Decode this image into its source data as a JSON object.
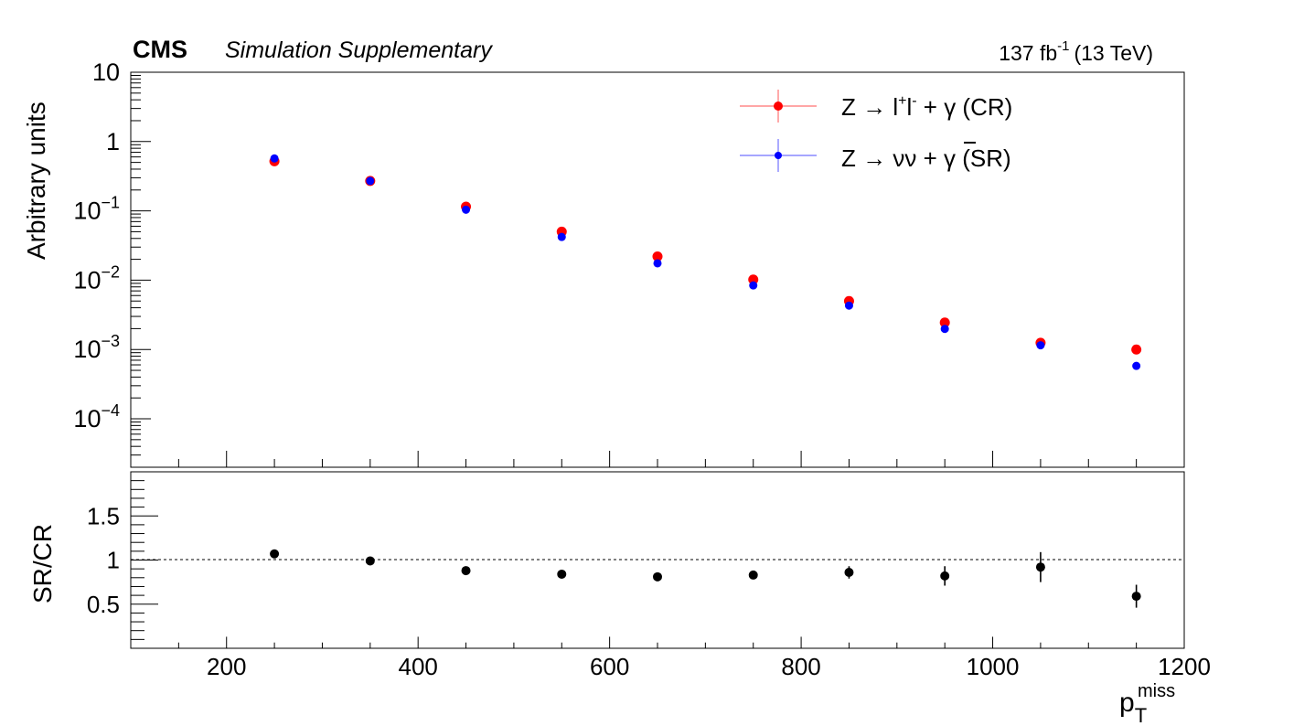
{
  "header": {
    "experiment": "CMS",
    "subtitle": "Simulation Supplementary",
    "lumi_value": "137 fb",
    "lumi_exp": "-1",
    "lumi_energy": "(13 TeV)"
  },
  "chart_data": [
    {
      "type": "scatter",
      "panel": "main",
      "ylabel": "Arbitrary units",
      "yscale": "log",
      "ylim": [
        2e-05,
        10
      ],
      "xlim": [
        100,
        1200
      ],
      "y_ticks": [
        {
          "value": 10,
          "base": "10",
          "exp": ""
        },
        {
          "value": 1,
          "base": "1",
          "exp": ""
        },
        {
          "value": 0.1,
          "base": "10",
          "exp": "−1"
        },
        {
          "value": 0.01,
          "base": "10",
          "exp": "−2"
        },
        {
          "value": 0.001,
          "base": "10",
          "exp": "−3"
        },
        {
          "value": 0.0001,
          "base": "10",
          "exp": "−4"
        }
      ],
      "legend": {
        "position": "top-right",
        "entries": [
          {
            "prefix": "Z → l",
            "sup1": "+",
            "mid": "l",
            "sup2": "-",
            "suffix": " + γ (CR)"
          },
          {
            "prefix": "Z → νν",
            "sup1": "",
            "mid": "",
            "sup2": "",
            "suffix": " + γ (SR)"
          }
        ]
      },
      "x": [
        250,
        350,
        450,
        550,
        650,
        750,
        850,
        950,
        1050,
        1150
      ],
      "series": [
        {
          "name": "Z → l+l- + γ (CR)",
          "color": "#ff0000",
          "values": [
            0.52,
            0.27,
            0.115,
            0.05,
            0.022,
            0.0102,
            0.005,
            0.00245,
            0.00125,
            0.001
          ]
        },
        {
          "name": "Z → νν + γ (SR)",
          "color": "#0000ff",
          "values": [
            0.57,
            0.27,
            0.104,
            0.042,
            0.0175,
            0.0084,
            0.0043,
            0.00198,
            0.00115,
            0.00058
          ]
        }
      ]
    },
    {
      "type": "scatter",
      "panel": "ratio",
      "ylabel": "SR/CR",
      "ylim": [
        0,
        2
      ],
      "xlim": [
        100,
        1200
      ],
      "y_tick_labels": [
        {
          "value": 1.5,
          "label": "1.5"
        },
        {
          "value": 1,
          "label": "1"
        },
        {
          "value": 0.5,
          "label": "0.5"
        }
      ],
      "x_tick_labels": [
        {
          "value": 200,
          "label": "200"
        },
        {
          "value": 400,
          "label": "400"
        },
        {
          "value": 600,
          "label": "600"
        },
        {
          "value": 800,
          "label": "800"
        },
        {
          "value": 1000,
          "label": "1000"
        },
        {
          "value": 1200,
          "label": "1200"
        }
      ],
      "xlabel": {
        "base": "p",
        "sub": "T",
        "sup": "miss"
      },
      "reference_line": 1,
      "x": [
        250,
        350,
        450,
        550,
        650,
        750,
        850,
        950,
        1050,
        1150
      ],
      "values": [
        1.07,
        0.99,
        0.88,
        0.84,
        0.81,
        0.83,
        0.86,
        0.82,
        0.92,
        0.59
      ],
      "errors": [
        0.02,
        0.02,
        0.03,
        0.03,
        0.04,
        0.04,
        0.07,
        0.11,
        0.17,
        0.13
      ],
      "color": "#000000"
    }
  ]
}
